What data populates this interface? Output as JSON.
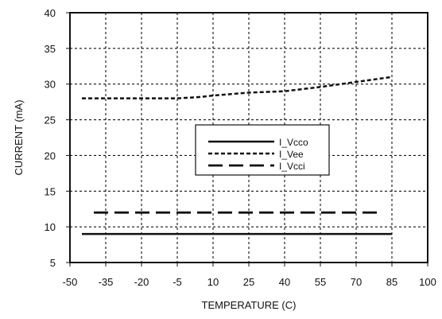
{
  "chart_data": {
    "type": "line",
    "xlabel": "TEMPERATURE (C)",
    "ylabel": "CURRENT (mA)",
    "xlim": [
      -50,
      100
    ],
    "ylim": [
      5,
      40
    ],
    "x_ticks": [
      -50,
      -35,
      -20,
      -5,
      10,
      25,
      40,
      55,
      70,
      85,
      100
    ],
    "y_ticks": [
      5,
      10,
      15,
      20,
      25,
      30,
      35,
      40
    ],
    "x_tick_labels": [
      "-50",
      "-35",
      "-20",
      "-5",
      "10",
      "25",
      "40",
      "55",
      "70",
      "85",
      "100"
    ],
    "y_tick_labels": [
      "5",
      "10",
      "15",
      "20",
      "25",
      "30",
      "35",
      "40"
    ],
    "grid": true,
    "legend_position": "center-right",
    "series": [
      {
        "name": "I_Vcco",
        "style": "solid",
        "color": "#111111",
        "points": [
          [
            -45,
            9
          ],
          [
            85,
            9
          ]
        ]
      },
      {
        "name": "I_Vee",
        "style": "dashed",
        "color": "#111111",
        "points": [
          [
            -45,
            28
          ],
          [
            -35,
            28
          ],
          [
            -20,
            28
          ],
          [
            -5,
            28
          ],
          [
            5,
            28.2
          ],
          [
            10,
            28.4
          ],
          [
            25,
            28.8
          ],
          [
            40,
            29
          ],
          [
            55,
            29.6
          ],
          [
            70,
            30.3
          ],
          [
            85,
            31
          ]
        ]
      },
      {
        "name": "I_Vcci",
        "style": "long-dash",
        "color": "#111111",
        "points": [
          [
            -40,
            12
          ],
          [
            80,
            12
          ]
        ]
      }
    ]
  }
}
